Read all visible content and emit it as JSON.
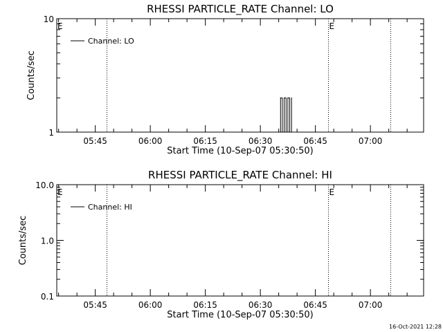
{
  "timestamp": "16-Oct-2021 12:28",
  "chart_data": [
    {
      "type": "line",
      "title": "RHESSI PARTICLE_RATE Channel: LO",
      "xlabel": "Start Time (10-Sep-07 05:30:50)",
      "ylabel": "Counts/sec",
      "yscale": "log",
      "ylim": [
        1,
        10
      ],
      "xlim": [
        "05:34:30",
        "07:14:30"
      ],
      "x_ticks": [
        "05:45",
        "06:00",
        "06:15",
        "06:30",
        "06:45",
        "07:00"
      ],
      "y_ticks": [
        "1",
        "10"
      ],
      "legend": {
        "placement": "top-left",
        "entries": [
          "Channel: LO"
        ]
      },
      "event_markers": [
        {
          "time": "05:48:00",
          "label": ""
        },
        {
          "time": "06:48:30",
          "label": "E"
        },
        {
          "time": "07:05:30",
          "label": ""
        }
      ],
      "edge_labels": {
        "left": "E"
      },
      "series": [
        {
          "name": "Channel: LO",
          "color": "#000000",
          "x": [
            "06:35:00",
            "06:35:30",
            "06:36:00",
            "06:36:30",
            "06:37:00",
            "06:37:30",
            "06:38:00",
            "06:38:30"
          ],
          "values": [
            1,
            2,
            1,
            2,
            1,
            2,
            1,
            2
          ]
        }
      ]
    },
    {
      "type": "line",
      "title": "RHESSI PARTICLE_RATE Channel: HI",
      "xlabel": "Start Time (10-Sep-07 05:30:50)",
      "ylabel": "Counts/sec",
      "yscale": "log",
      "ylim": [
        0.1,
        10
      ],
      "xlim": [
        "05:34:30",
        "07:14:30"
      ],
      "x_ticks": [
        "05:45",
        "06:00",
        "06:15",
        "06:30",
        "06:45",
        "07:00"
      ],
      "y_ticks": [
        "0.1",
        "1.0",
        "10.0"
      ],
      "legend": {
        "placement": "top-left",
        "entries": [
          "Channel: HI"
        ]
      },
      "event_markers": [
        {
          "time": "05:48:00",
          "label": ""
        },
        {
          "time": "06:48:30",
          "label": "E"
        },
        {
          "time": "07:05:30",
          "label": ""
        }
      ],
      "edge_labels": {
        "left": "E"
      },
      "series": [
        {
          "name": "Channel: HI",
          "color": "#000000",
          "x": [],
          "values": []
        }
      ]
    }
  ]
}
